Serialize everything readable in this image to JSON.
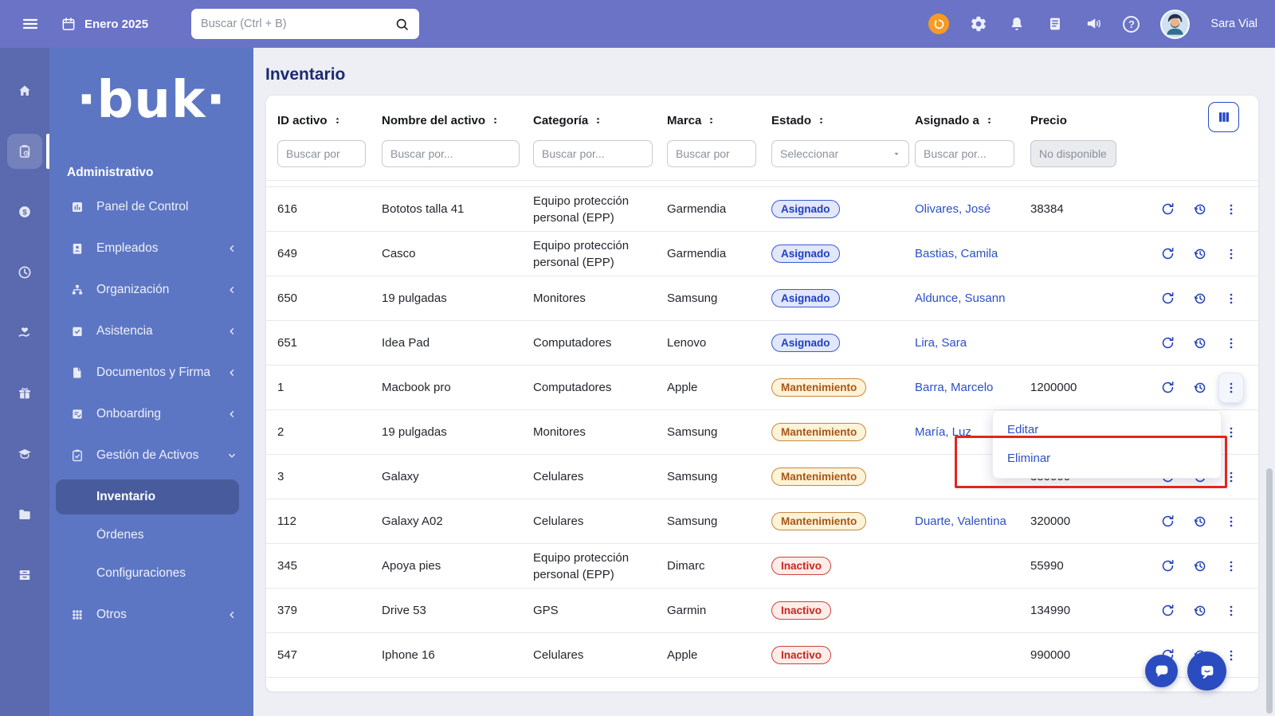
{
  "navbar": {
    "date": "Enero 2025",
    "search_placeholder": "Buscar (Ctrl + B)",
    "user_name": "Sara Vial"
  },
  "rail": {
    "items": [
      "home",
      "assets-clipboard",
      "payments-dollar",
      "time-clock",
      "benefits-hand-heart",
      "gifts-box",
      "training-graduation",
      "files-folder",
      "archive-drawer"
    ],
    "active_index": 1
  },
  "sidebar": {
    "logo": "·buk·",
    "section_label": "Administrativo",
    "items": [
      {
        "key": "panel-de-control",
        "icon": "panel",
        "label": "Panel de Control",
        "chevron": ""
      },
      {
        "key": "empleados",
        "icon": "empleados",
        "label": "Empleados",
        "chevron": "left"
      },
      {
        "key": "organizacion",
        "icon": "org",
        "label": "Organización",
        "chevron": "left"
      },
      {
        "key": "asistencia",
        "icon": "asistencia",
        "label": "Asistencia",
        "chevron": "left"
      },
      {
        "key": "documentos-y-firma",
        "icon": "documentos",
        "label": "Documentos y Firma",
        "chevron": "left"
      },
      {
        "key": "onboarding",
        "icon": "onboarding",
        "label": "Onboarding",
        "chevron": "left"
      },
      {
        "key": "gestion-de-activos",
        "icon": "activos",
        "label": "Gestión de Activos",
        "chevron": "down",
        "expanded": true
      },
      {
        "key": "inventario",
        "sub": true,
        "label": "Inventario",
        "active": true
      },
      {
        "key": "ordenes",
        "sub": true,
        "label": "Órdenes",
        "active": false
      },
      {
        "key": "configuraciones",
        "sub": true,
        "label": "Configuraciones",
        "active": false
      },
      {
        "key": "otros",
        "icon": "otros",
        "label": "Otros",
        "chevron": "left"
      }
    ]
  },
  "page": {
    "title": "Inventario"
  },
  "table": {
    "columns": [
      {
        "label": "ID activo",
        "sortable": true
      },
      {
        "label": "Nombre del activo",
        "sortable": true
      },
      {
        "label": "Categoría",
        "sortable": true
      },
      {
        "label": "Marca",
        "sortable": true
      },
      {
        "label": "Estado",
        "sortable": true
      },
      {
        "label": "Asignado a",
        "sortable": true
      },
      {
        "label": "Precio",
        "sortable": false
      }
    ],
    "filters": [
      {
        "type": "text",
        "placeholder": "Buscar por"
      },
      {
        "type": "text",
        "placeholder": "Buscar por..."
      },
      {
        "type": "text",
        "placeholder": "Buscar por..."
      },
      {
        "type": "text",
        "placeholder": "Buscar por"
      },
      {
        "type": "select",
        "placeholder": "Seleccionar"
      },
      {
        "type": "text",
        "placeholder": "Buscar por..."
      },
      {
        "type": "disabled",
        "placeholder": "No disponible"
      }
    ],
    "rows": [
      {
        "id": "616",
        "nombre": "Bototos talla 41",
        "categoria": "Equipo protección personal (EPP)",
        "marca": "Garmendia",
        "estado": "Asignado",
        "estado_tipo": "asignado",
        "asignado_a": "Olivares, José",
        "precio": "38384",
        "menu_open": false
      },
      {
        "id": "649",
        "nombre": "Casco",
        "categoria": "Equipo protección personal (EPP)",
        "marca": "Garmendia",
        "estado": "Asignado",
        "estado_tipo": "asignado",
        "asignado_a": "Bastias, Camila",
        "precio": "",
        "menu_open": false
      },
      {
        "id": "650",
        "nombre": "19 pulgadas",
        "categoria": "Monitores",
        "marca": "Samsung",
        "estado": "Asignado",
        "estado_tipo": "asignado",
        "asignado_a": "Aldunce, Susann",
        "precio": "",
        "menu_open": false
      },
      {
        "id": "651",
        "nombre": "Idea Pad",
        "categoria": "Computadores",
        "marca": "Lenovo",
        "estado": "Asignado",
        "estado_tipo": "asignado",
        "asignado_a": "Lira, Sara",
        "precio": "",
        "menu_open": false
      },
      {
        "id": "1",
        "nombre": "Macbook pro",
        "categoria": "Computadores",
        "marca": "Apple",
        "estado": "Mantenimiento",
        "estado_tipo": "mantenimiento",
        "asignado_a": "Barra, Marcelo",
        "precio": "1200000",
        "menu_open": true
      },
      {
        "id": "2",
        "nombre": "19 pulgadas",
        "categoria": "Monitores",
        "marca": "Samsung",
        "estado": "Mantenimiento",
        "estado_tipo": "mantenimiento",
        "asignado_a": "María, Luz",
        "precio": "",
        "menu_open": false
      },
      {
        "id": "3",
        "nombre": "Galaxy",
        "categoria": "Celulares",
        "marca": "Samsung",
        "estado": "Mantenimiento",
        "estado_tipo": "mantenimiento",
        "asignado_a": "",
        "precio": "350000",
        "menu_open": false
      },
      {
        "id": "112",
        "nombre": "Galaxy A02",
        "categoria": "Celulares",
        "marca": "Samsung",
        "estado": "Mantenimiento",
        "estado_tipo": "mantenimiento",
        "asignado_a": "Duarte, Valentina",
        "precio": "320000",
        "menu_open": false
      },
      {
        "id": "345",
        "nombre": "Apoya pies",
        "categoria": "Equipo protección personal (EPP)",
        "marca": "Dimarc",
        "estado": "Inactivo",
        "estado_tipo": "inactivo",
        "asignado_a": "",
        "precio": "55990",
        "menu_open": false
      },
      {
        "id": "379",
        "nombre": "Drive 53",
        "categoria": "GPS",
        "marca": "Garmin",
        "estado": "Inactivo",
        "estado_tipo": "inactivo",
        "asignado_a": "",
        "precio": "134990",
        "menu_open": false
      },
      {
        "id": "547",
        "nombre": "Iphone 16",
        "categoria": "Celulares",
        "marca": "Apple",
        "estado": "Inactivo",
        "estado_tipo": "inactivo",
        "asignado_a": "",
        "precio": "990000",
        "menu_open": false
      }
    ]
  },
  "context_menu": {
    "items": [
      "Editar",
      "Eliminar"
    ]
  },
  "colors": {
    "navbar": "#6a73c6",
    "rail": "#5b69ae",
    "sidebar": "#5d76c3",
    "accent_blue": "#2b50c8",
    "buk_orange": "#f59b23",
    "badge_asignado_text": "#1d3fc0",
    "badge_mantenimiento_text": "#a85618",
    "badge_inactivo_text": "#c5281c",
    "annotation_red": "#e3261d",
    "title_navy": "#1b2a70"
  }
}
